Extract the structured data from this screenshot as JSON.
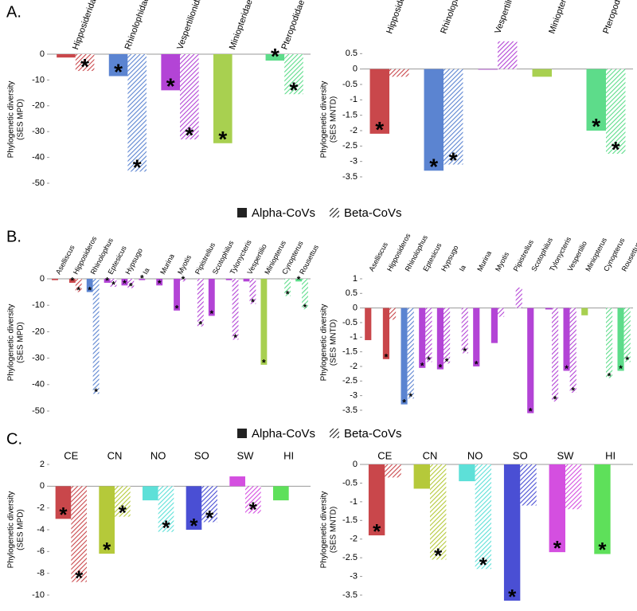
{
  "panels": [
    "A.",
    "B.",
    "C."
  ],
  "chart_data": [
    {
      "type": "bar",
      "ylabel": [
        "Phylogenetic diversity",
        "(SES MPD)"
      ],
      "categories": [
        "Hipposideridae",
        "Rhinolophidae",
        "Vespertilionidae",
        "Miniopteridae",
        "Pteropodidae"
      ],
      "colors": [
        "#c9474b",
        "#5b84d1",
        "#b344d6",
        "#a8d050",
        "#5ddc8a"
      ],
      "series": [
        {
          "name": "Alpha-CoVs",
          "values": [
            -1.3,
            -8.5,
            -14,
            -34.5,
            -2.5
          ],
          "markers": [
            null,
            "*",
            "*",
            "*",
            "*"
          ]
        },
        {
          "name": "Beta-CoVs",
          "values": [
            -6.5,
            -45.5,
            -33,
            null,
            -15.5
          ],
          "markers": [
            "*",
            "*",
            "*",
            null,
            "*"
          ]
        }
      ],
      "ylim": [
        -50,
        0
      ],
      "yticks": [
        0,
        -10,
        -20,
        -30,
        -40,
        -50
      ]
    },
    {
      "type": "bar",
      "ylabel": [
        "Phylogenetic diversity",
        "(SES MNTD)"
      ],
      "categories": [
        "Hipposideridae",
        "Rhinolophidae",
        "Vespertilionidae",
        "Miniopteridae",
        "Pteropodidae"
      ],
      "colors": [
        "#c9474b",
        "#5b84d1",
        "#b344d6",
        "#a8d050",
        "#5ddc8a"
      ],
      "series": [
        {
          "name": "Alpha-CoVs",
          "values": [
            -2.1,
            -3.3,
            -0.02,
            -0.25,
            -2.0
          ],
          "markers": [
            "*",
            "*",
            null,
            null,
            "*"
          ]
        },
        {
          "name": "Beta-CoVs",
          "values": [
            -0.25,
            -3.1,
            0.9,
            null,
            -2.75
          ],
          "markers": [
            null,
            "*",
            null,
            null,
            "*"
          ]
        }
      ],
      "ylim": [
        -3.5,
        1
      ],
      "yticks": [
        0.5,
        0,
        -0.5,
        -1,
        -1.5,
        -2,
        -2.5,
        -3,
        -3.5
      ]
    },
    {
      "type": "bar",
      "ylabel": [
        "Phylogenetic diversity",
        "(SES MPD)"
      ],
      "categories": [
        "Aselliscus",
        "Hipposideros",
        "Rhinolophus",
        "Eptesicus",
        "Hypsugo",
        "Ia",
        "Murina",
        "Myotis",
        "Pipistrellus",
        "Scotophilus",
        "Tylonycteris",
        "Vespertilio",
        "Miniopterus",
        "Cynopterus",
        "Rousettus"
      ],
      "colors": [
        "#c9474b",
        "#c9474b",
        "#5b84d1",
        "#b344d6",
        "#b344d6",
        "#b344d6",
        "#b344d6",
        "#b344d6",
        "#b344d6",
        "#b344d6",
        "#b344d6",
        "#b344d6",
        "#a8d050",
        "#5ddc8a",
        "#5ddc8a"
      ],
      "series": [
        {
          "name": "Alpha-CoVs",
          "values": [
            -0.5,
            -1.5,
            -5,
            -1.5,
            -2.5,
            -0.5,
            -2.5,
            -12,
            null,
            -14,
            -0.5,
            -1,
            -32.5,
            null,
            -1
          ],
          "markers": [
            null,
            "*",
            "*",
            "*",
            "*",
            "*",
            "*",
            "*",
            null,
            "*",
            null,
            null,
            "*",
            null,
            "*"
          ]
        },
        {
          "name": "Beta-CoVs",
          "values": [
            null,
            -5,
            -43.5,
            -3,
            -3.5,
            null,
            null,
            -1,
            -18,
            null,
            -23,
            -9.5,
            null,
            -6.5,
            -11.5
          ],
          "markers": [
            null,
            "*",
            "*",
            "*",
            "*",
            null,
            null,
            "*",
            "*",
            null,
            "*",
            "*",
            null,
            "*",
            "*"
          ]
        }
      ],
      "ylim": [
        -50,
        0
      ],
      "yticks": [
        0,
        -10,
        -20,
        -30,
        -40,
        -50
      ]
    },
    {
      "type": "bar",
      "ylabel": [
        "Phylogenetic diversity",
        "(SES MNTD)"
      ],
      "categories": [
        "Aselliscus",
        "Hipposideros",
        "Rhinolophus",
        "Eptesicus",
        "Hypsugo",
        "Ia",
        "Murina",
        "Myotis",
        "Pipistrellus",
        "Scotophilus",
        "Tylonycteris",
        "Vespertilio",
        "Miniopterus",
        "Cynopterus",
        "Rousettus"
      ],
      "colors": [
        "#c9474b",
        "#c9474b",
        "#5b84d1",
        "#b344d6",
        "#b344d6",
        "#b344d6",
        "#b344d6",
        "#b344d6",
        "#b344d6",
        "#b344d6",
        "#b344d6",
        "#b344d6",
        "#a8d050",
        "#5ddc8a",
        "#5ddc8a"
      ],
      "series": [
        {
          "name": "Alpha-CoVs",
          "values": [
            -1.1,
            -1.75,
            -3.3,
            -2.05,
            -2.1,
            null,
            -2.0,
            -1.2,
            null,
            -3.6,
            -0.05,
            -2.15,
            -0.25,
            null,
            -2.15
          ],
          "markers": [
            null,
            "*",
            "*",
            "*",
            "*",
            null,
            "*",
            null,
            null,
            "*",
            null,
            "*",
            null,
            null,
            "*"
          ]
        },
        {
          "name": "Beta-CoVs",
          "values": [
            null,
            -0.4,
            -3.1,
            -1.85,
            -1.9,
            -1.55,
            null,
            -0.3,
            0.7,
            null,
            -3.2,
            -2.9,
            null,
            -2.4,
            -1.85
          ],
          "markers": [
            null,
            null,
            "*",
            "*",
            "*",
            "*",
            null,
            null,
            null,
            null,
            "*",
            "*",
            null,
            "*",
            "*"
          ]
        }
      ],
      "ylim": [
        -3.7,
        1.1
      ],
      "yticks": [
        1,
        0.5,
        0,
        -0.5,
        -1,
        -1.5,
        -2,
        -2.5,
        -3,
        -3.5
      ]
    },
    {
      "type": "bar",
      "ylabel": [
        "Phylogenetic diversity",
        "(SES MPD)"
      ],
      "categories": [
        "CE",
        "CN",
        "NO",
        "SO",
        "SW",
        "HI"
      ],
      "colors": [
        "#c9474b",
        "#b5c93a",
        "#5de0d8",
        "#4a4fd4",
        "#d44fe0",
        "#5ee05a"
      ],
      "series": [
        {
          "name": "Alpha-CoVs",
          "values": [
            -3,
            -6.2,
            -1.3,
            -4,
            0.9,
            -1.3
          ],
          "markers": [
            "*",
            "*",
            null,
            "*",
            null,
            null
          ]
        },
        {
          "name": "Beta-CoVs",
          "values": [
            -8.8,
            -2.8,
            -4.2,
            -3.3,
            -2.5,
            null
          ],
          "markers": [
            "*",
            "*",
            "*",
            "*",
            "*",
            null
          ]
        }
      ],
      "ylim": [
        -10,
        2
      ],
      "yticks": [
        2,
        0,
        -2,
        -4,
        -6,
        -8,
        -10
      ]
    },
    {
      "type": "bar",
      "ylabel": [
        "Phylogenetic diversity",
        "(SES MNTD)"
      ],
      "categories": [
        "CE",
        "CN",
        "NO",
        "SO",
        "SW",
        "HI"
      ],
      "colors": [
        "#c9474b",
        "#b5c93a",
        "#5de0d8",
        "#4a4fd4",
        "#d44fe0",
        "#5ee05a"
      ],
      "series": [
        {
          "name": "Alpha-CoVs",
          "values": [
            -1.9,
            -0.65,
            -0.45,
            -3.65,
            -2.35,
            -2.4
          ],
          "markers": [
            "*",
            null,
            null,
            "*",
            "*",
            "*"
          ]
        },
        {
          "name": "Beta-CoVs",
          "values": [
            -0.35,
            -2.55,
            -2.8,
            -1.1,
            -1.2,
            null
          ],
          "markers": [
            null,
            "*",
            "*",
            null,
            null,
            null
          ]
        }
      ],
      "ylim": [
        -3.7,
        0
      ],
      "yticks": [
        0,
        -0.5,
        -1,
        -1.5,
        -2,
        -2.5,
        -3,
        -3.5
      ]
    }
  ]
}
